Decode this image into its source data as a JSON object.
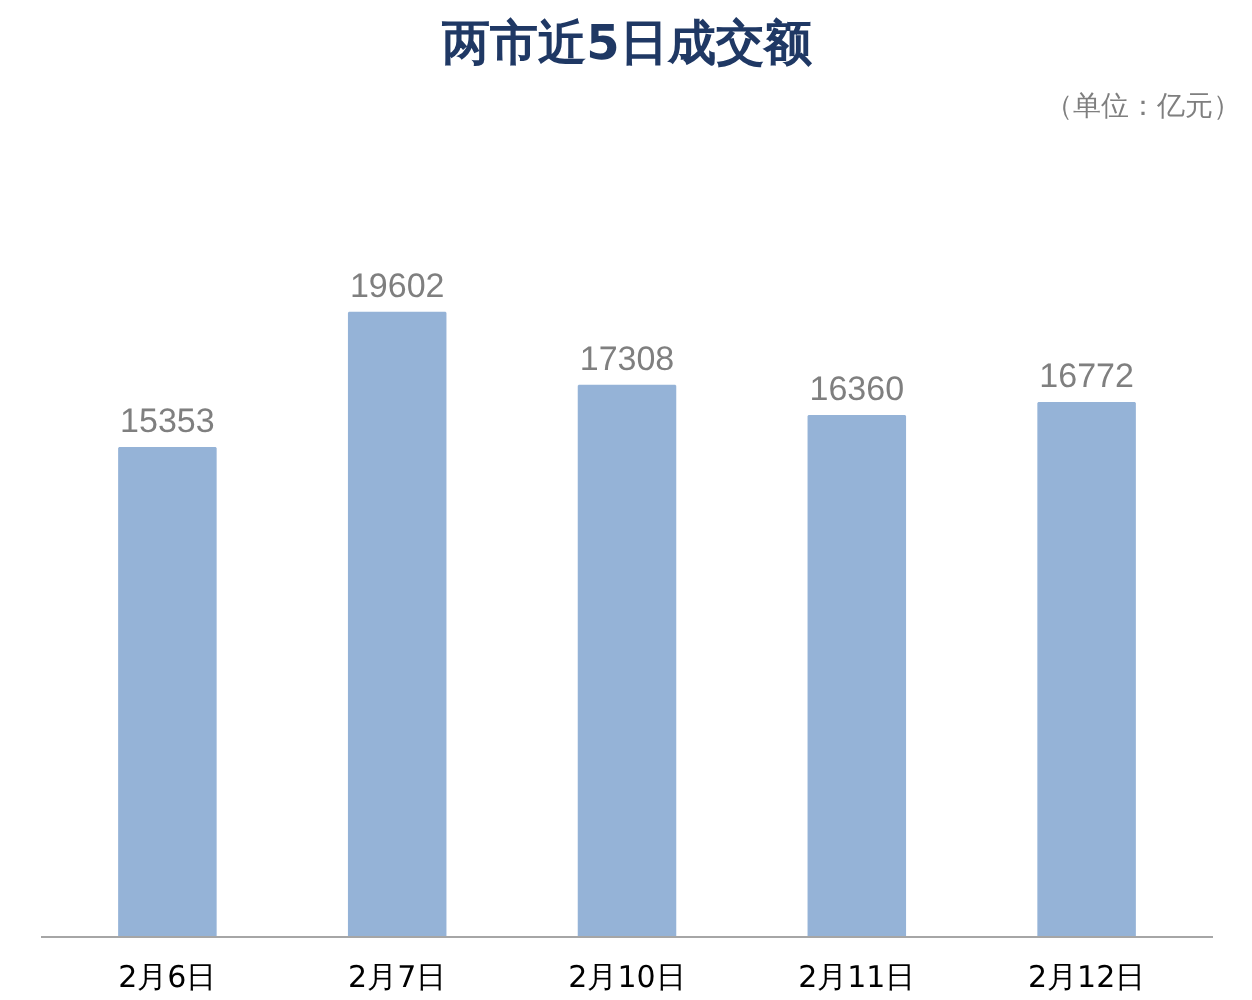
{
  "chart_data": {
    "type": "bar",
    "title": "两市近5日成交额",
    "annotations": [
      "（单位：亿元）"
    ],
    "categories": [
      "2月6日",
      "2月7日",
      "2月10日",
      "2月11日",
      "2月12日"
    ],
    "values": [
      15353,
      19602,
      17308,
      16360,
      16772
    ],
    "color": "#95b3d7",
    "data_labels": true,
    "grid": false
  }
}
